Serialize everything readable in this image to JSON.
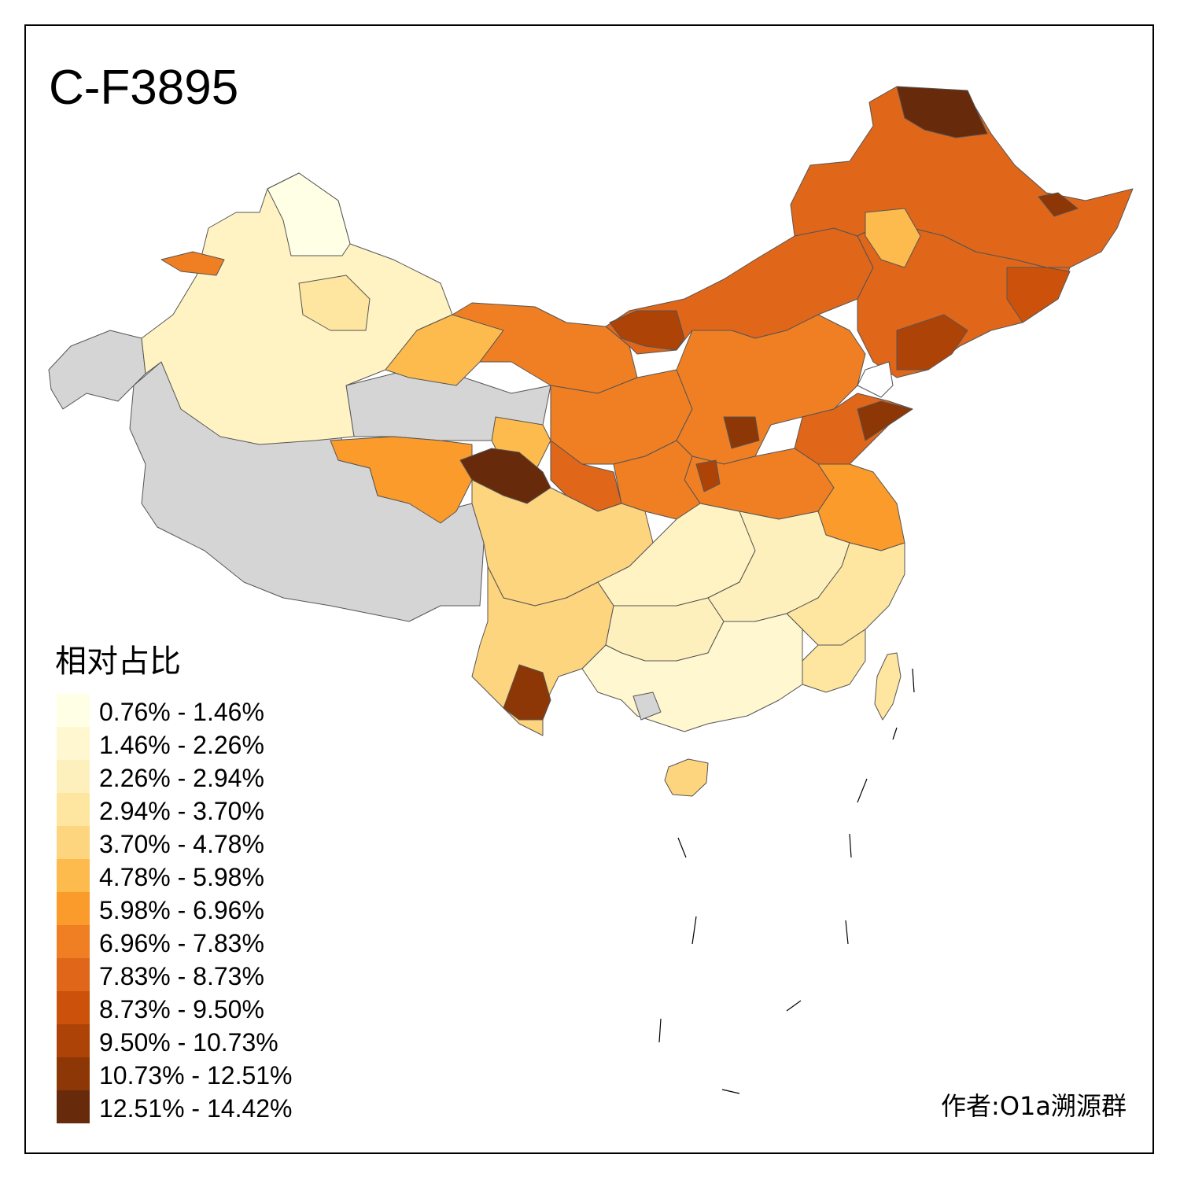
{
  "title": "C-F3895",
  "legend": {
    "title": "相对占比",
    "items": [
      {
        "label": "0.76% - 1.46%",
        "color": "#ffffe5"
      },
      {
        "label": "1.46% - 2.26%",
        "color": "#fff7cf"
      },
      {
        "label": "2.26% - 2.94%",
        "color": "#fef0bd"
      },
      {
        "label": "2.94% - 3.70%",
        "color": "#fee5a0"
      },
      {
        "label": "3.70% - 4.78%",
        "color": "#fed57f"
      },
      {
        "label": "4.78% - 5.98%",
        "color": "#fdbb4e"
      },
      {
        "label": "5.98% - 6.96%",
        "color": "#fa9b2c"
      },
      {
        "label": "6.96% - 7.83%",
        "color": "#f07f24"
      },
      {
        "label": "7.83% - 8.73%",
        "color": "#e0661a"
      },
      {
        "label": "8.73% - 9.50%",
        "color": "#cc520c"
      },
      {
        "label": "9.50% - 10.73%",
        "color": "#ae4307"
      },
      {
        "label": "10.73% - 12.51%",
        "color": "#8c3705"
      },
      {
        "label": "12.51% - 14.42%",
        "color": "#672a0b"
      }
    ]
  },
  "no_data_color": "#d5d5d5",
  "author": "作者:O1a溯源群"
}
